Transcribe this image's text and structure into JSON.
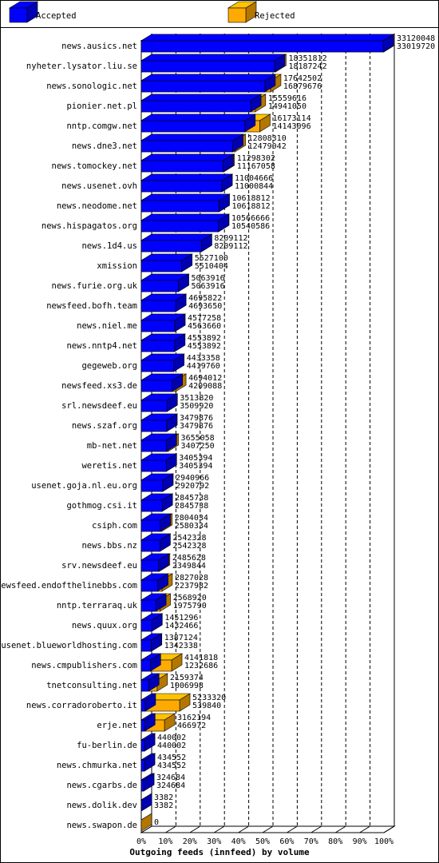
{
  "chart_data": {
    "type": "hbar3d",
    "title": "Outgoing feeds (innfeed) by volume",
    "legend": [
      {
        "name": "Accepted",
        "color": "#0000ff"
      },
      {
        "name": "Rejected",
        "color": "#ffaa00"
      }
    ],
    "categories": [
      "news.ausics.net",
      "nyheter.lysator.liu.se",
      "news.sonologic.net",
      "pionier.net.pl",
      "nntp.comgw.net",
      "news.dne3.net",
      "news.tomockey.net",
      "news.usenet.ovh",
      "news.neodome.net",
      "news.hispagatos.org",
      "news.1d4.us",
      "xmission",
      "news.furie.org.uk",
      "newsfeed.bofh.team",
      "news.niel.me",
      "news.nntp4.net",
      "gegeweb.org",
      "newsfeed.xs3.de",
      "srl.newsdeef.eu",
      "news.szaf.org",
      "mb-net.net",
      "weretis.net",
      "usenet.goja.nl.eu.org",
      "gothmog.csi.it",
      "csiph.com",
      "news.bbs.nz",
      "srv.newsdeef.eu",
      "newsfeed.endofthelinebbs.com",
      "nntp.terraraq.uk",
      "news.quux.org",
      "usenet.blueworldhosting.com",
      "news.cmpublishers.com",
      "tnetconsulting.net",
      "news.corradoroberto.it",
      "erje.net",
      "fu-berlin.de",
      "news.chmurka.net",
      "news.cgarbs.de",
      "news.dolik.dev",
      "news.swapon.de"
    ],
    "totals": [
      33120048,
      18351812,
      17642502,
      15559616,
      16173114,
      12808310,
      11298302,
      11004666,
      10618812,
      10566666,
      8209112,
      5527100,
      5063916,
      4695822,
      4577258,
      4553892,
      4433358,
      4694012,
      3513820,
      3479876,
      3655058,
      3405394,
      2940966,
      2845738,
      2804034,
      2542328,
      2485628,
      2827028,
      2568920,
      1451296,
      1387124,
      4141818,
      2159374,
      5233320,
      3162194,
      440002,
      434552,
      324684,
      3382,
      0
    ],
    "accepted": [
      33019720,
      18187242,
      16879676,
      14941050,
      14143096,
      12479042,
      11167058,
      11000844,
      10618812,
      10540586,
      8209112,
      5510404,
      5063916,
      4693650,
      4563660,
      4553892,
      4419760,
      4209088,
      3509920,
      3479876,
      3407250,
      3405394,
      2920792,
      2845738,
      2580334,
      2542328,
      2349844,
      2237982,
      1975790,
      1432466,
      1342338,
      1232686,
      1006998,
      539840,
      466972,
      440002,
      434552,
      324684,
      3382,
      null
    ],
    "xlim": [
      0,
      33120048
    ],
    "xticks": [
      {
        "value": 0,
        "label": "0%"
      },
      {
        "value": 3312004.8,
        "label": "10%"
      },
      {
        "value": 6624009.6,
        "label": "20%"
      },
      {
        "value": 9936014.4,
        "label": "30%"
      },
      {
        "value": 13248019.2,
        "label": "40%"
      },
      {
        "value": 16560024,
        "label": "50%"
      },
      {
        "value": 19872028.8,
        "label": "60%"
      },
      {
        "value": 23184033.6,
        "label": "70%"
      },
      {
        "value": 26496038.4,
        "label": "80%"
      },
      {
        "value": 29808043.2,
        "label": "90%"
      },
      {
        "value": 33120048,
        "label": "100%"
      }
    ],
    "grid": true
  }
}
